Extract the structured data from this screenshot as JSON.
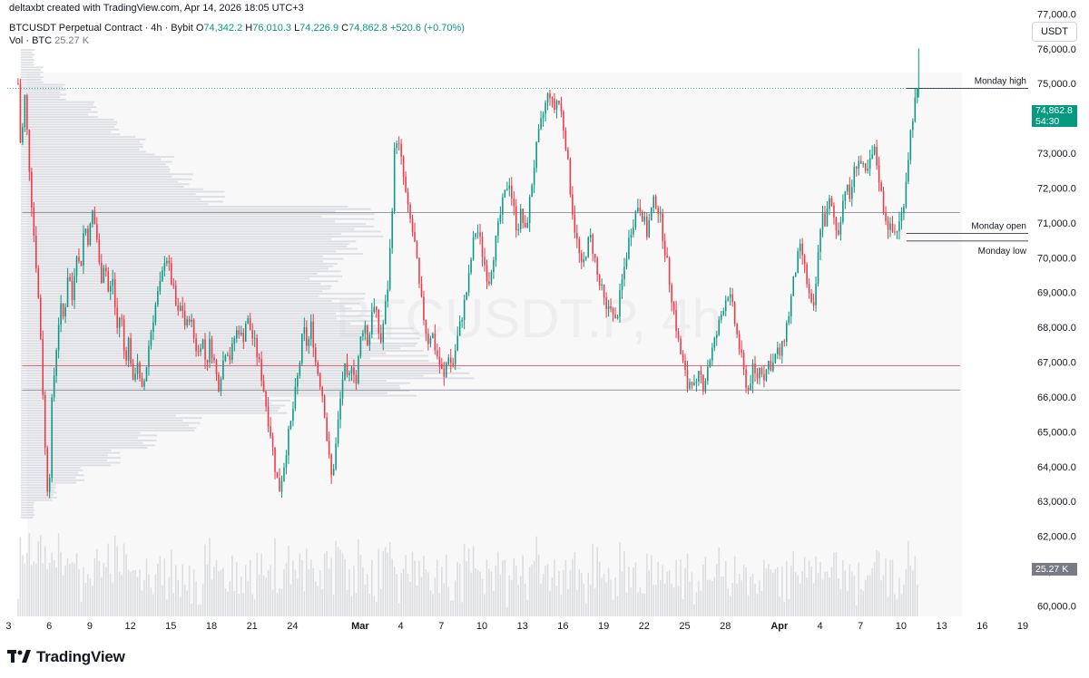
{
  "header": {
    "credit": "deltaxbt created with TradingView.com, Apr 14, 2026 18:05 UTC+3",
    "symbol_line": "BTCUSDT Perpetual Contract · 4h · Bybit",
    "o_label": "O",
    "o_value": "74,342.2",
    "h_label": "H",
    "h_value": "76,010.3",
    "l_label": "L",
    "l_value": "74,226.9",
    "c_label": "C",
    "c_value": "74,862.8",
    "change": "+520.6 (+0.70%)",
    "vol_label": "Vol · BTC",
    "vol_value": "25.27 K"
  },
  "currency_button": "USDT",
  "last_price": {
    "value": "74,862.8",
    "countdown": "54:30"
  },
  "volume_tag": "25.27 K",
  "watermark": "BTCUSDT.P, 4h",
  "levels": [
    {
      "name": "Monday high",
      "price": 74862.8
    },
    {
      "name": "Monday open",
      "price": 70700
    },
    {
      "name": "Monday low",
      "price": 70480
    }
  ],
  "brand": "TradingView",
  "colors": {
    "up": "#089981",
    "down": "#f23645",
    "vp": "#d1d4dc",
    "vp_poc": "#f23645"
  },
  "chart_data": {
    "type": "candlestick",
    "timeframe": "4h",
    "y_ticks": [
      60000,
      61000,
      62000,
      63000,
      64000,
      65000,
      66000,
      67000,
      68000,
      69000,
      70000,
      71000,
      72000,
      73000,
      74000,
      75000,
      76000,
      77000
    ],
    "y_tick_labels": [
      "60,000.0",
      "61,000.0",
      "62,000.0",
      "63,000.0",
      "64,000.0",
      "65,000.0",
      "66,000.0",
      "67,000.0",
      "68,000.0",
      "69,000.0",
      "70,000.0",
      "71,000.0",
      "72,000.0",
      "73,000.0",
      "74,000.0",
      "75,000.0",
      "76,000.0",
      "77,000.0"
    ],
    "ylim": [
      59700,
      77400
    ],
    "x_ticks": [
      {
        "label": "3",
        "day": 3
      },
      {
        "label": "6",
        "day": 6
      },
      {
        "label": "9",
        "day": 9
      },
      {
        "label": "12",
        "day": 12
      },
      {
        "label": "15",
        "day": 15
      },
      {
        "label": "18",
        "day": 18
      },
      {
        "label": "21",
        "day": 21
      },
      {
        "label": "24",
        "day": 24
      },
      {
        "label": "Mar",
        "day": 29
      },
      {
        "label": "4",
        "day": 32
      },
      {
        "label": "7",
        "day": 35
      },
      {
        "label": "10",
        "day": 38
      },
      {
        "label": "13",
        "day": 41
      },
      {
        "label": "16",
        "day": 44
      },
      {
        "label": "19",
        "day": 47
      },
      {
        "label": "22",
        "day": 50
      },
      {
        "label": "25",
        "day": 53
      },
      {
        "label": "28",
        "day": 56
      },
      {
        "label": "Apr",
        "day": 60
      },
      {
        "label": "4",
        "day": 63
      },
      {
        "label": "7",
        "day": 66
      },
      {
        "label": "10",
        "day": 69
      },
      {
        "label": "13",
        "day": 72
      },
      {
        "label": "16",
        "day": 75
      },
      {
        "label": "19",
        "day": 78
      }
    ],
    "x_range_days": [
      2.9,
      78.4
    ],
    "close_path": [
      [
        3.7,
        75000
      ],
      [
        3.9,
        73000
      ],
      [
        4.2,
        74600
      ],
      [
        4.5,
        72800
      ],
      [
        4.8,
        71000
      ],
      [
        5.1,
        69500
      ],
      [
        5.4,
        67500
      ],
      [
        5.7,
        64500
      ],
      [
        5.95,
        62900
      ],
      [
        6.2,
        65800
      ],
      [
        6.5,
        67300
      ],
      [
        6.8,
        68600
      ],
      [
        7.1,
        68200
      ],
      [
        7.4,
        69700
      ],
      [
        7.7,
        68800
      ],
      [
        8.0,
        70300
      ],
      [
        8.3,
        69600
      ],
      [
        8.6,
        71000
      ],
      [
        8.9,
        70500
      ],
      [
        9.2,
        71300
      ],
      [
        9.5,
        70700
      ],
      [
        9.8,
        69300
      ],
      [
        10.1,
        70000
      ],
      [
        10.4,
        68900
      ],
      [
        10.7,
        69400
      ],
      [
        11.0,
        67900
      ],
      [
        11.3,
        68500
      ],
      [
        11.6,
        67000
      ],
      [
        11.9,
        67700
      ],
      [
        12.2,
        66300
      ],
      [
        12.5,
        67200
      ],
      [
        12.8,
        66000
      ],
      [
        13.1,
        66600
      ],
      [
        13.4,
        67600
      ],
      [
        13.7,
        68300
      ],
      [
        14.0,
        68900
      ],
      [
        14.3,
        69300
      ],
      [
        14.6,
        70200
      ],
      [
        14.9,
        69600
      ],
      [
        15.2,
        69000
      ],
      [
        15.5,
        68300
      ],
      [
        15.8,
        68700
      ],
      [
        16.1,
        67900
      ],
      [
        16.4,
        68400
      ],
      [
        16.7,
        67700
      ],
      [
        17.0,
        67200
      ],
      [
        17.3,
        67800
      ],
      [
        17.6,
        66900
      ],
      [
        17.9,
        67600
      ],
      [
        18.2,
        67000
      ],
      [
        18.5,
        66300
      ],
      [
        18.8,
        66900
      ],
      [
        19.1,
        67500
      ],
      [
        19.4,
        67100
      ],
      [
        19.7,
        67700
      ],
      [
        20.0,
        68000
      ],
      [
        20.3,
        67600
      ],
      [
        20.6,
        68300
      ],
      [
        20.9,
        67900
      ],
      [
        21.2,
        67500
      ],
      [
        21.5,
        67000
      ],
      [
        21.8,
        66400
      ],
      [
        22.1,
        65600
      ],
      [
        22.4,
        64900
      ],
      [
        22.7,
        64000
      ],
      [
        23.0,
        63300
      ],
      [
        23.3,
        63900
      ],
      [
        23.6,
        64700
      ],
      [
        23.9,
        65300
      ],
      [
        24.2,
        66100
      ],
      [
        24.5,
        66900
      ],
      [
        24.8,
        68000
      ],
      [
        25.1,
        67400
      ],
      [
        25.4,
        68100
      ],
      [
        25.7,
        67000
      ],
      [
        26.0,
        66500
      ],
      [
        26.3,
        65900
      ],
      [
        26.6,
        64500
      ],
      [
        26.9,
        63600
      ],
      [
        27.2,
        64600
      ],
      [
        27.5,
        65800
      ],
      [
        27.8,
        66900
      ],
      [
        28.1,
        66300
      ],
      [
        28.4,
        67100
      ],
      [
        28.7,
        66400
      ],
      [
        29.0,
        67600
      ],
      [
        29.3,
        68200
      ],
      [
        29.6,
        67400
      ],
      [
        29.9,
        68700
      ],
      [
        30.2,
        68300
      ],
      [
        30.5,
        67500
      ],
      [
        30.8,
        68400
      ],
      [
        31.1,
        69400
      ],
      [
        31.4,
        71800
      ],
      [
        31.6,
        73600
      ],
      [
        31.9,
        73100
      ],
      [
        32.2,
        72300
      ],
      [
        32.5,
        71400
      ],
      [
        32.8,
        70900
      ],
      [
        33.1,
        70200
      ],
      [
        33.4,
        69000
      ],
      [
        33.7,
        68300
      ],
      [
        34.0,
        67600
      ],
      [
        34.3,
        67900
      ],
      [
        34.6,
        67300
      ],
      [
        34.9,
        66900
      ],
      [
        35.2,
        66500
      ],
      [
        35.5,
        67300
      ],
      [
        35.8,
        66800
      ],
      [
        36.1,
        67500
      ],
      [
        36.4,
        68100
      ],
      [
        36.7,
        68700
      ],
      [
        37.0,
        69300
      ],
      [
        37.3,
        70300
      ],
      [
        37.6,
        70900
      ],
      [
        37.9,
        70400
      ],
      [
        38.2,
        69800
      ],
      [
        38.5,
        69300
      ],
      [
        38.8,
        70000
      ],
      [
        39.1,
        70600
      ],
      [
        39.4,
        71300
      ],
      [
        39.7,
        71800
      ],
      [
        40.0,
        72300
      ],
      [
        40.3,
        71500
      ],
      [
        40.6,
        70800
      ],
      [
        40.9,
        71300
      ],
      [
        41.2,
        70700
      ],
      [
        41.5,
        71500
      ],
      [
        41.8,
        72500
      ],
      [
        42.1,
        73300
      ],
      [
        42.4,
        73900
      ],
      [
        42.7,
        74400
      ],
      [
        43.0,
        74800
      ],
      [
        43.3,
        74200
      ],
      [
        43.6,
        74600
      ],
      [
        43.9,
        74100
      ],
      [
        44.2,
        73300
      ],
      [
        44.5,
        72100
      ],
      [
        44.8,
        71000
      ],
      [
        45.1,
        70300
      ],
      [
        45.4,
        69600
      ],
      [
        45.7,
        70200
      ],
      [
        46.0,
        70600
      ],
      [
        46.3,
        70100
      ],
      [
        46.6,
        69300
      ],
      [
        46.9,
        69000
      ],
      [
        47.2,
        68400
      ],
      [
        47.5,
        68800
      ],
      [
        47.8,
        68000
      ],
      [
        48.1,
        68600
      ],
      [
        48.4,
        69400
      ],
      [
        48.7,
        70100
      ],
      [
        49.0,
        70800
      ],
      [
        49.3,
        71200
      ],
      [
        49.6,
        71600
      ],
      [
        49.9,
        71200
      ],
      [
        50.2,
        70700
      ],
      [
        50.5,
        71300
      ],
      [
        50.8,
        71700
      ],
      [
        51.1,
        71300
      ],
      [
        51.4,
        70600
      ],
      [
        51.7,
        69800
      ],
      [
        52.0,
        69000
      ],
      [
        52.3,
        68200
      ],
      [
        52.6,
        67400
      ],
      [
        52.9,
        66900
      ],
      [
        53.2,
        66300
      ],
      [
        53.5,
        66600
      ],
      [
        53.8,
        66100
      ],
      [
        54.1,
        66700
      ],
      [
        54.4,
        66300
      ],
      [
        54.7,
        66900
      ],
      [
        55.0,
        67300
      ],
      [
        55.3,
        67700
      ],
      [
        55.6,
        68200
      ],
      [
        55.9,
        68700
      ],
      [
        56.2,
        69000
      ],
      [
        56.5,
        68600
      ],
      [
        56.8,
        67900
      ],
      [
        57.1,
        67300
      ],
      [
        57.4,
        66600
      ],
      [
        57.7,
        66200
      ],
      [
        58.0,
        66800
      ],
      [
        58.3,
        66500
      ],
      [
        58.6,
        66900
      ],
      [
        58.9,
        66600
      ],
      [
        59.2,
        67000
      ],
      [
        59.5,
        66900
      ],
      [
        59.8,
        67300
      ],
      [
        60.1,
        67200
      ],
      [
        60.4,
        67800
      ],
      [
        60.7,
        68400
      ],
      [
        61.0,
        69200
      ],
      [
        61.3,
        69900
      ],
      [
        61.6,
        70300
      ],
      [
        61.9,
        69600
      ],
      [
        62.2,
        68900
      ],
      [
        62.5,
        68300
      ],
      [
        62.8,
        69700
      ],
      [
        63.1,
        71300
      ],
      [
        63.4,
        71000
      ],
      [
        63.7,
        71600
      ],
      [
        64.0,
        71200
      ],
      [
        64.3,
        70600
      ],
      [
        64.6,
        71400
      ],
      [
        64.9,
        72100
      ],
      [
        65.2,
        71700
      ],
      [
        65.5,
        72400
      ],
      [
        65.8,
        72900
      ],
      [
        66.1,
        72600
      ],
      [
        66.4,
        72300
      ],
      [
        66.7,
        72700
      ],
      [
        67.0,
        73100
      ],
      [
        67.3,
        72500
      ],
      [
        67.6,
        71600
      ],
      [
        67.9,
        71100
      ],
      [
        68.2,
        70800
      ],
      [
        68.5,
        70700
      ],
      [
        68.8,
        70900
      ],
      [
        69.1,
        71300
      ],
      [
        69.4,
        72400
      ],
      [
        69.7,
        73600
      ],
      [
        69.95,
        74342
      ],
      [
        70.3,
        74862
      ]
    ],
    "volume_profile": {
      "poc_price": 66900,
      "bins": [
        [
          75750,
          0.03
        ],
        [
          75250,
          0.05
        ],
        [
          74750,
          0.1
        ],
        [
          74250,
          0.17
        ],
        [
          73750,
          0.22
        ],
        [
          73250,
          0.28
        ],
        [
          72750,
          0.34
        ],
        [
          72250,
          0.38
        ],
        [
          71750,
          0.45
        ],
        [
          71250,
          0.78
        ],
        [
          70750,
          0.8
        ],
        [
          70250,
          0.76
        ],
        [
          69750,
          0.72
        ],
        [
          69250,
          0.71
        ],
        [
          68750,
          0.76
        ],
        [
          68250,
          0.8
        ],
        [
          67750,
          0.88
        ],
        [
          67250,
          0.9
        ],
        [
          66750,
          1.0
        ],
        [
          66250,
          0.88
        ],
        [
          65750,
          0.6
        ],
        [
          65250,
          0.4
        ],
        [
          64750,
          0.3
        ],
        [
          64250,
          0.22
        ],
        [
          63750,
          0.14
        ],
        [
          63250,
          0.08
        ],
        [
          62750,
          0.03
        ]
      ]
    }
  }
}
